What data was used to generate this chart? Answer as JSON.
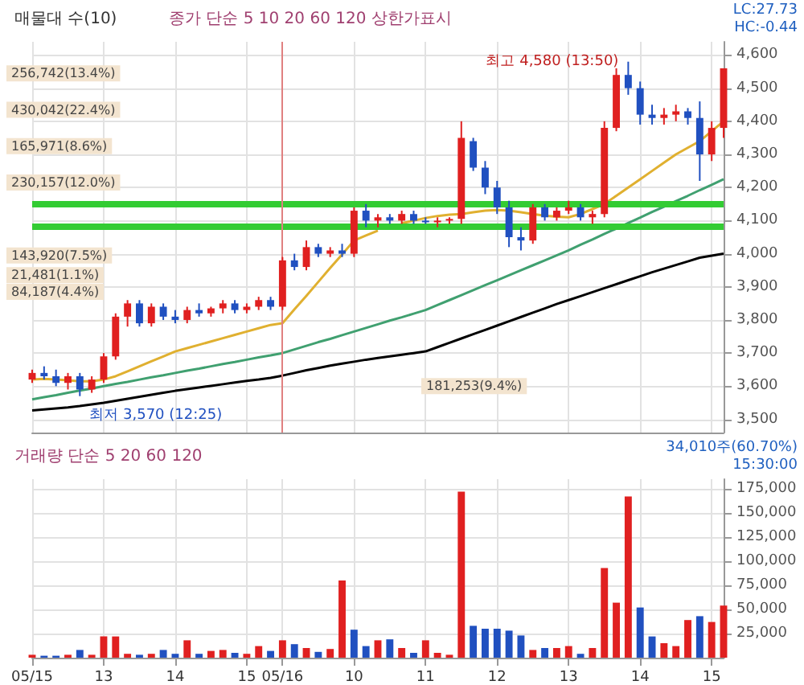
{
  "chart_data": [
    {
      "type": "candlestick",
      "title": "매물대 수(10)",
      "subtitle": "종가 단순 5 10 20 60 120 상한가표시",
      "categories": [
        "05/15",
        null,
        null,
        null,
        null,
        null,
        "13",
        null,
        null,
        null,
        null,
        null,
        "14",
        null,
        null,
        null,
        null,
        null,
        "15",
        null,
        null,
        "05/16",
        null,
        null,
        null,
        null,
        null,
        "10",
        null,
        null,
        null,
        null,
        null,
        "11",
        null,
        null,
        null,
        null,
        null,
        "12",
        null,
        null,
        null,
        null,
        null,
        "13",
        null,
        null,
        null,
        null,
        null,
        "14",
        null,
        null,
        null,
        null,
        null,
        "15",
        null
      ],
      "ohlc": [
        [
          3620,
          3650,
          3610,
          3640
        ],
        [
          3640,
          3660,
          3620,
          3630
        ],
        [
          3630,
          3650,
          3600,
          3610
        ],
        [
          3610,
          3640,
          3590,
          3630
        ],
        [
          3630,
          3640,
          3570,
          3590
        ],
        [
          3590,
          3630,
          3580,
          3620
        ],
        [
          3620,
          3700,
          3610,
          3690
        ],
        [
          3690,
          3820,
          3680,
          3810
        ],
        [
          3810,
          3860,
          3780,
          3850
        ],
        [
          3850,
          3860,
          3780,
          3790
        ],
        [
          3790,
          3850,
          3780,
          3840
        ],
        [
          3840,
          3850,
          3800,
          3810
        ],
        [
          3810,
          3830,
          3790,
          3800
        ],
        [
          3800,
          3840,
          3790,
          3830
        ],
        [
          3830,
          3850,
          3810,
          3820
        ],
        [
          3820,
          3840,
          3810,
          3835
        ],
        [
          3835,
          3860,
          3820,
          3850
        ],
        [
          3850,
          3860,
          3820,
          3830
        ],
        [
          3830,
          3850,
          3820,
          3840
        ],
        [
          3840,
          3870,
          3830,
          3860
        ],
        [
          3860,
          3870,
          3830,
          3840
        ],
        [
          3840,
          3990,
          3830,
          3980
        ],
        [
          3980,
          4000,
          3950,
          3960
        ],
        [
          3960,
          4040,
          3950,
          4020
        ],
        [
          4020,
          4030,
          3990,
          4000
        ],
        [
          4000,
          4020,
          3990,
          4010
        ],
        [
          4010,
          4030,
          3990,
          4000
        ],
        [
          4000,
          4140,
          3990,
          4130
        ],
        [
          4130,
          4150,
          4080,
          4100
        ],
        [
          4100,
          4120,
          4080,
          4110
        ],
        [
          4110,
          4120,
          4090,
          4100
        ],
        [
          4100,
          4130,
          4090,
          4120
        ],
        [
          4120,
          4130,
          4090,
          4100
        ],
        [
          4100,
          4110,
          4090,
          4095
        ],
        [
          4095,
          4110,
          4080,
          4100
        ],
        [
          4100,
          4110,
          4090,
          4105
        ],
        [
          4105,
          4400,
          4090,
          4350
        ],
        [
          4340,
          4350,
          4250,
          4260
        ],
        [
          4260,
          4280,
          4180,
          4200
        ],
        [
          4200,
          4220,
          4120,
          4140
        ],
        [
          4140,
          4160,
          4020,
          4050
        ],
        [
          4050,
          4080,
          4010,
          4040
        ],
        [
          4040,
          4150,
          4030,
          4140
        ],
        [
          4140,
          4150,
          4100,
          4110
        ],
        [
          4110,
          4140,
          4100,
          4130
        ],
        [
          4130,
          4160,
          4120,
          4140
        ],
        [
          4140,
          4150,
          4100,
          4110
        ],
        [
          4110,
          4130,
          4090,
          4120
        ],
        [
          4120,
          4400,
          4110,
          4380
        ],
        [
          4380,
          4560,
          4370,
          4540
        ],
        [
          4540,
          4580,
          4480,
          4500
        ],
        [
          4500,
          4520,
          4390,
          4420
        ],
        [
          4420,
          4450,
          4390,
          4410
        ],
        [
          4410,
          4440,
          4390,
          4420
        ],
        [
          4420,
          4450,
          4400,
          4430
        ],
        [
          4430,
          4440,
          4390,
          4410
        ],
        [
          4410,
          4460,
          4220,
          4300
        ],
        [
          4300,
          4400,
          4280,
          4380
        ],
        [
          4380,
          4560,
          4350,
          4560
        ]
      ],
      "colors": [
        "#e02020",
        "#2050c0",
        "#2050c0",
        "#e02020",
        "#2050c0",
        "#e02020",
        "#e02020",
        "#e02020",
        "#e02020",
        "#2050c0",
        "#e02020",
        "#2050c0",
        "#2050c0",
        "#e02020",
        "#2050c0",
        "#e02020",
        "#e02020",
        "#2050c0",
        "#e02020",
        "#e02020",
        "#2050c0",
        "#e02020",
        "#2050c0",
        "#e02020",
        "#2050c0",
        "#e02020",
        "#2050c0",
        "#e02020",
        "#2050c0",
        "#e02020",
        "#2050c0",
        "#e02020",
        "#2050c0",
        "#2050c0",
        "#e02020",
        "#e02020",
        "#e02020",
        "#2050c0",
        "#2050c0",
        "#2050c0",
        "#2050c0",
        "#2050c0",
        "#e02020",
        "#2050c0",
        "#e02020",
        "#e02020",
        "#2050c0",
        "#e02020",
        "#e02020",
        "#e02020",
        "#2050c0",
        "#2050c0",
        "#2050c0",
        "#e02020",
        "#e02020",
        "#2050c0",
        "#2050c0",
        "#e02020",
        "#e02020"
      ],
      "series": [
        {
          "type": "line",
          "color": "#e0b030",
          "values": [
            3620,
            3622,
            3620,
            3618,
            3615,
            3615,
            3620,
            3630,
            3645,
            3660,
            3675,
            3690,
            3705,
            3715,
            3725,
            3735,
            3745,
            3755,
            3765,
            3775,
            3785,
            3790,
            3832,
            3873,
            3915,
            3957,
            3998,
            4040,
            4055,
            4070,
            null,
            4092,
            4100,
            4108,
            4114,
            4118,
            4120,
            4125,
            4130,
            4132,
            4130,
            4125,
            4120,
            4115,
            4112,
            4110,
            4120,
            4135,
            4150,
            4175,
            4200,
            4225,
            4250,
            4275,
            4300,
            4320,
            4340,
            4370,
            4400
          ]
        },
        {
          "type": "line",
          "color": "#40a070",
          "values": [
            3560,
            3567,
            3573,
            3580,
            3587,
            3593,
            3600,
            3607,
            3613,
            3620,
            3627,
            3633,
            3640,
            3647,
            3653,
            3660,
            3667,
            3673,
            3680,
            3687,
            3693,
            3700,
            3711,
            3722,
            3733,
            3743,
            3754,
            3765,
            3776,
            3787,
            3798,
            3808,
            3819,
            3830,
            3845,
            3860,
            3875,
            3890,
            3905,
            3920,
            3935,
            3950,
            3965,
            3980,
            3995,
            4010,
            4027,
            4043,
            4060,
            4076,
            4093,
            4109,
            4126,
            4142,
            4159,
            4175,
            4192,
            4208,
            4225
          ]
        },
        {
          "type": "line",
          "color": "#000000",
          "values": [
            3527,
            3530,
            3533,
            3536,
            3540,
            3545,
            3550,
            3556,
            3562,
            3568,
            3574,
            3580,
            3586,
            3591,
            3596,
            3601,
            3606,
            3611,
            3616,
            3620,
            3625,
            3632,
            3640,
            3648,
            3655,
            3662,
            3668,
            3674,
            3680,
            3685,
            3690,
            3695,
            3700,
            3705,
            3718,
            3731,
            3744,
            3757,
            3770,
            3783,
            3796,
            3809,
            3822,
            3835,
            3848,
            3860,
            3872,
            3884,
            3896,
            3908,
            3920,
            3932,
            3944,
            3955,
            3966,
            3977,
            3988,
            3994,
            4000
          ]
        }
      ],
      "ylim": [
        3460,
        4640
      ],
      "yticks": [
        {
          "value": 3500,
          "label": "3,500"
        },
        {
          "value": 3600,
          "label": "3,600"
        },
        {
          "value": 3700,
          "label": "3,700"
        },
        {
          "value": 3800,
          "label": "3,800"
        },
        {
          "value": 3900,
          "label": "3,900"
        },
        {
          "value": 4000,
          "label": "4,000"
        },
        {
          "value": 4100,
          "label": "4,100"
        },
        {
          "value": 4200,
          "label": "4,200"
        },
        {
          "value": 4300,
          "label": "4,300"
        },
        {
          "value": 4400,
          "label": "4,400"
        },
        {
          "value": 4500,
          "label": "4,500"
        },
        {
          "value": 4600,
          "label": "4,600"
        }
      ],
      "grid": true,
      "tick_labels": "y",
      "ref_lines": [
        {
          "axis": "y",
          "value": 4150,
          "color": "#33cc33"
        },
        {
          "axis": "y",
          "value": 4085,
          "color": "#33cc33"
        },
        {
          "axis": "x",
          "value": "05/16",
          "color": "#e08080"
        }
      ],
      "annotations": [
        "LC:27.73",
        "HC:-0.44",
        "최고 4,580 (13:50)",
        "최저 3,570 (12:25)",
        "256,742(13.4%)",
        "430,042(22.4%)",
        "165,971(8.6%)",
        "230,157(12.0%)",
        "143,920(7.5%)",
        "21,481(1.1%)",
        "84,187(4.4%)",
        "181,253(9.4%)"
      ]
    },
    {
      "type": "bar",
      "subtitle": "거래량 단순 5 20 60 120",
      "categories": [
        "05/15",
        null,
        null,
        null,
        null,
        null,
        "13",
        null,
        null,
        null,
        null,
        null,
        "14",
        null,
        null,
        null,
        null,
        null,
        "15",
        null,
        null,
        "05/16",
        null,
        null,
        null,
        null,
        null,
        "10",
        null,
        null,
        null,
        null,
        null,
        "11",
        null,
        null,
        null,
        null,
        null,
        "12",
        null,
        null,
        null,
        null,
        null,
        "13",
        null,
        null,
        null,
        null,
        null,
        "14",
        null,
        null,
        null,
        null,
        null,
        "15",
        null
      ],
      "values": [
        3000,
        2000,
        2000,
        3000,
        8000,
        3000,
        22000,
        22000,
        4000,
        3000,
        4000,
        8000,
        4000,
        18000,
        4000,
        7000,
        8000,
        5000,
        4000,
        12000,
        7000,
        18000,
        14000,
        10000,
        6000,
        9000,
        80000,
        29000,
        12000,
        18000,
        19000,
        10000,
        5000,
        18000,
        5000,
        3000,
        172000,
        33000,
        30000,
        30000,
        28000,
        23000,
        8000,
        10000,
        10000,
        12000,
        4000,
        10000,
        93000,
        57000,
        167000,
        52000,
        22000,
        15000,
        12000,
        39000,
        43000,
        37000,
        54000
      ],
      "colors": [
        "#e02020",
        "#2050c0",
        "#2050c0",
        "#e02020",
        "#2050c0",
        "#e02020",
        "#e02020",
        "#e02020",
        "#e02020",
        "#2050c0",
        "#e02020",
        "#2050c0",
        "#2050c0",
        "#e02020",
        "#2050c0",
        "#e02020",
        "#e02020",
        "#2050c0",
        "#e02020",
        "#e02020",
        "#2050c0",
        "#e02020",
        "#2050c0",
        "#e02020",
        "#2050c0",
        "#e02020",
        "#e02020",
        "#2050c0",
        "#2050c0",
        "#e02020",
        "#2050c0",
        "#e02020",
        "#2050c0",
        "#e02020",
        "#e02020",
        "#e02020",
        "#e02020",
        "#2050c0",
        "#2050c0",
        "#2050c0",
        "#2050c0",
        "#2050c0",
        "#e02020",
        "#2050c0",
        "#e02020",
        "#e02020",
        "#2050c0",
        "#e02020",
        "#e02020",
        "#e02020",
        "#e02020",
        "#2050c0",
        "#2050c0",
        "#e02020",
        "#e02020",
        "#e02020",
        "#2050c0",
        "#e02020",
        "#e02020"
      ],
      "ylim": [
        0,
        185000
      ],
      "yticks": [
        {
          "value": 25000,
          "label": "25,000"
        },
        {
          "value": 50000,
          "label": "50,000"
        },
        {
          "value": 75000,
          "label": "75,000"
        },
        {
          "value": 100000,
          "label": "100,000"
        },
        {
          "value": 125000,
          "label": "125,000"
        },
        {
          "value": 150000,
          "label": "150,000"
        },
        {
          "value": 175000,
          "label": "175,000"
        }
      ],
      "grid": true,
      "annotations": [
        "34,010주(60.70%)",
        "15:30:00"
      ]
    }
  ]
}
